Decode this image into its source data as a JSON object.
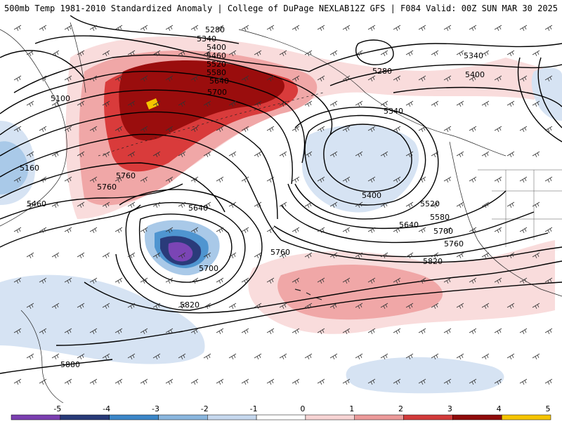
{
  "header": {
    "left_title": "500mb Temp 1981-2010 Standardized Anomaly | College of DuPage NEXLAB",
    "right_title": "12Z GFS | F084 Valid: 00Z SUN MAR 30 2025"
  },
  "contour_labels": [
    {
      "text": "5280"
    },
    {
      "text": "5340"
    },
    {
      "text": "5400"
    },
    {
      "text": "5460"
    },
    {
      "text": "5520"
    },
    {
      "text": "5580"
    },
    {
      "text": "5640"
    },
    {
      "text": "5700"
    },
    {
      "text": "5100"
    },
    {
      "text": "5160"
    },
    {
      "text": "5760"
    },
    {
      "text": "5760"
    },
    {
      "text": "5460"
    },
    {
      "text": "5640"
    },
    {
      "text": "5700"
    },
    {
      "text": "5760"
    },
    {
      "text": "5820"
    },
    {
      "text": "5880"
    },
    {
      "text": "5340"
    },
    {
      "text": "5400"
    },
    {
      "text": "5280"
    },
    {
      "text": "5520"
    },
    {
      "text": "5580"
    },
    {
      "text": "5640"
    },
    {
      "text": "5700"
    },
    {
      "text": "5760"
    },
    {
      "text": "5820"
    },
    {
      "text": "5340"
    },
    {
      "text": "5400"
    }
  ],
  "legend": {
    "ticks": [
      "-5",
      "-4",
      "-3",
      "-2",
      "-1",
      "0",
      "1",
      "2",
      "3",
      "4",
      "5"
    ],
    "colors": [
      "#7b3fb0",
      "#283a78",
      "#3b86c8",
      "#8ab6de",
      "#c6d8ee",
      "#ffffff",
      "#f7d4d4",
      "#ec9a9a",
      "#d23a3a",
      "#8f0b0b",
      "#f5c400"
    ]
  },
  "anomaly_colors": {
    "pos1": "#f9dcdc",
    "pos2": "#f0a7a7",
    "pos3": "#d93b3b",
    "pos4": "#9a0d0d",
    "pos5": "#f5c400",
    "neg1": "#d6e3f3",
    "neg2": "#a9c9e8",
    "neg3": "#4f95d0",
    "neg4": "#2a3b7a",
    "neg5": "#7b45b5"
  }
}
